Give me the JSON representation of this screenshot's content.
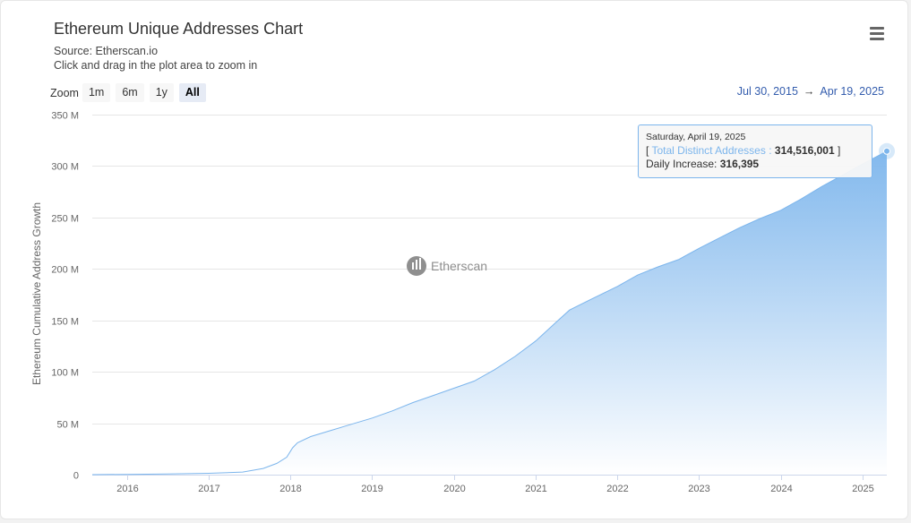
{
  "header": {
    "title": "Ethereum Unique Addresses Chart",
    "source": "Source: Etherscan.io",
    "hint": "Click and drag in the plot area to zoom in"
  },
  "zoom": {
    "label": "Zoom",
    "buttons": [
      "1m",
      "6m",
      "1y",
      "All"
    ],
    "active": "All"
  },
  "range": {
    "from": "Jul 30, 2015",
    "arrow": "→",
    "to": "Apr 19, 2025"
  },
  "watermark": "Etherscan",
  "tooltip": {
    "date": "Saturday, April 19, 2025",
    "open_bracket": "[",
    "series_label": "Total Distinct Addresses",
    "colon": ":",
    "series_value": "314,516,001",
    "close_bracket": "]",
    "increase_label": "Daily Increase:",
    "increase_value": "316,395"
  },
  "colors": {
    "line": "#7cb5ec",
    "fill_top": "#7cb5ec",
    "fill_bottom": "#ffffff",
    "grid": "#e6e6e6",
    "range_text": "#335cad"
  },
  "chart_data": {
    "type": "area",
    "title": "Ethereum Unique Addresses Chart",
    "subtitle": "Source: Etherscan.io",
    "ylabel": "Ethereum Cumulative Address Growth",
    "xlabel": "",
    "xlim": [
      "2015-07-30",
      "2025-04-19"
    ],
    "ylim": [
      0,
      350000000
    ],
    "y_ticks": [
      0,
      50000000,
      100000000,
      150000000,
      200000000,
      250000000,
      300000000,
      350000000
    ],
    "y_tick_labels": [
      "0",
      "50 M",
      "100 M",
      "150 M",
      "200 M",
      "250 M",
      "300 M",
      "350 M"
    ],
    "x_ticks": [
      "2016-01-01",
      "2017-01-01",
      "2018-01-01",
      "2019-01-01",
      "2020-01-01",
      "2021-01-01",
      "2022-01-01",
      "2023-01-01",
      "2024-01-01",
      "2025-01-01"
    ],
    "x_tick_labels": [
      "2016",
      "2017",
      "2018",
      "2019",
      "2020",
      "2021",
      "2022",
      "2023",
      "2024",
      "2025"
    ],
    "grid": true,
    "legend": "none",
    "series": [
      {
        "name": "Total Distinct Addresses",
        "x": [
          "2015-07-30",
          "2016-01-01",
          "2016-07-01",
          "2017-01-01",
          "2017-06-01",
          "2017-09-01",
          "2017-11-01",
          "2017-12-15",
          "2018-01-10",
          "2018-02-01",
          "2018-04-01",
          "2018-07-01",
          "2018-10-01",
          "2019-01-01",
          "2019-04-01",
          "2019-07-01",
          "2019-10-01",
          "2020-01-01",
          "2020-04-01",
          "2020-07-01",
          "2020-10-01",
          "2021-01-01",
          "2021-04-01",
          "2021-06-01",
          "2021-09-01",
          "2022-01-01",
          "2022-04-01",
          "2022-07-01",
          "2022-10-01",
          "2023-01-01",
          "2023-04-01",
          "2023-07-01",
          "2023-10-01",
          "2024-01-01",
          "2024-04-01",
          "2024-07-01",
          "2024-10-01",
          "2025-01-01",
          "2025-04-19"
        ],
        "y": [
          0,
          300000,
          700000,
          1300000,
          2500000,
          6000000,
          11000000,
          17000000,
          26000000,
          31000000,
          37000000,
          43000000,
          49000000,
          55000000,
          62000000,
          70000000,
          77000000,
          84000000,
          91000000,
          102000000,
          115000000,
          130000000,
          148000000,
          160000000,
          170000000,
          183000000,
          194000000,
          202000000,
          209000000,
          220000000,
          230000000,
          240000000,
          249000000,
          257000000,
          268000000,
          280000000,
          291000000,
          302000000,
          314516001
        ]
      }
    ],
    "annotations": [
      {
        "x": "2025-04-19",
        "y": 314516001,
        "text": "Daily Increase: 316,395"
      }
    ]
  }
}
